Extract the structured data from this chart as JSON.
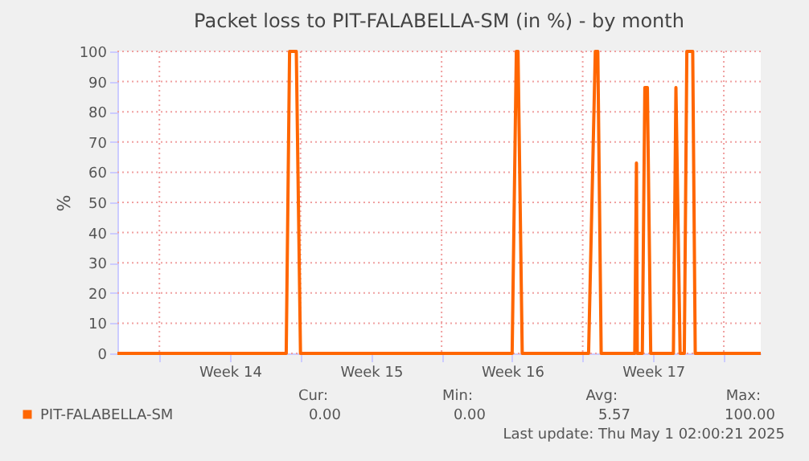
{
  "chart_data": {
    "type": "line",
    "title": "Packet loss to PIT-FALABELLA-SM (in %) - by month",
    "ylabel": "%",
    "x": [
      "2025-03-28T22:00",
      "2025-04-06T07:00",
      "2025-04-06T11:00",
      "2025-04-06T19:00",
      "2025-04-07T00:00",
      "2025-04-17T12:00",
      "2025-04-17T17:00",
      "2025-04-17T19:00",
      "2025-04-18T00:00",
      "2025-04-21T07:00",
      "2025-04-21T15:00",
      "2025-04-21T18:00",
      "2025-04-21T22:00",
      "2025-04-23T14:00",
      "2025-04-23T16:00",
      "2025-04-23T17:00",
      "2025-04-23T23:00",
      "2025-04-24T02:00",
      "2025-04-24T05:00",
      "2025-04-24T09:00",
      "2025-04-25T12:00",
      "2025-04-25T15:00",
      "2025-04-25T20:00",
      "2025-04-26T01:00",
      "2025-04-26T04:00",
      "2025-04-26T11:00",
      "2025-04-26T14:00",
      "2025-04-29T20:00"
    ],
    "series": [
      {
        "name": "PIT-FALABELLA-SM",
        "color": "#ff6600",
        "values": [
          0,
          0,
          100,
          100,
          0,
          0,
          100,
          100,
          0,
          0,
          100,
          100,
          0,
          0,
          63,
          0,
          0,
          88,
          88,
          0,
          0,
          88,
          0,
          0,
          100,
          100,
          0,
          0
        ]
      }
    ],
    "xlim": [
      "2025-03-28T22:00",
      "2025-04-29T20:00"
    ],
    "xticks": [
      {
        "value": "2025-03-31",
        "label": null
      },
      {
        "value": "2025-04-03T12:00",
        "label": "Week 14"
      },
      {
        "value": "2025-04-07",
        "label": null
      },
      {
        "value": "2025-04-10T12:00",
        "label": "Week 15"
      },
      {
        "value": "2025-04-14",
        "label": null
      },
      {
        "value": "2025-04-17T12:00",
        "label": "Week 16"
      },
      {
        "value": "2025-04-21",
        "label": null
      },
      {
        "value": "2025-04-24T12:00",
        "label": "Week 17"
      },
      {
        "value": "2025-04-28",
        "label": null
      }
    ],
    "ylim": [
      0,
      100
    ],
    "yticks": [
      0,
      10,
      20,
      30,
      40,
      50,
      60,
      70,
      80,
      90,
      100
    ],
    "grid": true,
    "legend": "bottom left",
    "marker": "none",
    "line_style": "solid",
    "annotations": [
      "Cur:",
      "Min:",
      "Avg:",
      "Max:",
      "0.00",
      "0.00",
      "5.57",
      "100.00",
      "Last update: Thu May  1 02:00:21 2025"
    ]
  }
}
